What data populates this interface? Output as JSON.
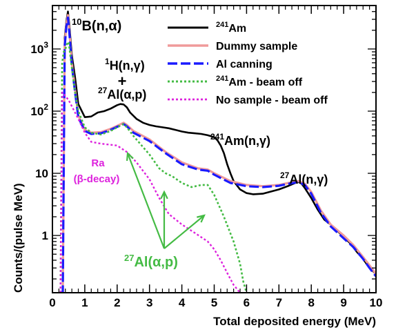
{
  "chart_data": {
    "type": "line",
    "xlabel": "Total deposited energy (MeV)",
    "ylabel": "Counts/(pulse MeV)",
    "xlim": [
      0,
      10
    ],
    "ylim": [
      0.12,
      5000
    ],
    "y_scale": "log",
    "grid": false,
    "legend_placement": "top-right",
    "x_ticks": [
      "0",
      "1",
      "2",
      "3",
      "4",
      "5",
      "6",
      "7",
      "8",
      "9",
      "10"
    ],
    "y_ticks": [
      {
        "value": 1,
        "label": "1"
      },
      {
        "value": 10,
        "label": "10"
      },
      {
        "value": 100,
        "label": "10",
        "exp": "2"
      },
      {
        "value": 1000,
        "label": "10",
        "exp": "3"
      }
    ],
    "series": [
      {
        "name": "Am",
        "name_sup": "241",
        "color": "#000000",
        "dash": "solid",
        "x": [
          0.25,
          0.32,
          0.38,
          0.43,
          0.48,
          0.52,
          0.6,
          0.7,
          0.8,
          1.0,
          1.2,
          1.4,
          1.6,
          1.8,
          2.0,
          2.1,
          2.2,
          2.3,
          2.4,
          2.6,
          2.8,
          3.0,
          3.2,
          3.4,
          3.6,
          3.8,
          4.0,
          4.2,
          4.4,
          4.6,
          4.8,
          5.0,
          5.1,
          5.2,
          5.3,
          5.4,
          5.5,
          5.6,
          5.8,
          6.0,
          6.2,
          6.5,
          7.0,
          7.3,
          7.5,
          7.6,
          7.7,
          7.8,
          8.0,
          8.2,
          8.4,
          8.6,
          8.8,
          9.0,
          9.2,
          9.4,
          9.6,
          9.8,
          10.0
        ],
        "y": [
          0.12,
          0.12,
          1500,
          2800,
          4000,
          2500,
          800,
          350,
          130,
          80,
          82,
          95,
          100,
          110,
          125,
          130,
          128,
          115,
          95,
          75,
          65,
          60,
          57,
          55,
          53,
          50,
          47,
          45,
          44,
          43,
          41,
          38,
          34,
          28,
          21,
          14,
          10,
          7.5,
          5.5,
          4.8,
          4.6,
          4.7,
          5.5,
          6.3,
          7.0,
          7.3,
          6.8,
          5.8,
          4.0,
          2.6,
          1.8,
          1.5,
          1.2,
          0.95,
          0.75,
          0.55,
          0.42,
          0.3,
          0.24
        ]
      },
      {
        "name": "Dummy sample",
        "color": "#f09a9a",
        "dash": "solid",
        "x": [
          0.25,
          0.32,
          0.38,
          0.43,
          0.48,
          0.52,
          0.6,
          0.7,
          0.8,
          1.0,
          1.2,
          1.5,
          1.8,
          2.0,
          2.2,
          2.3,
          2.5,
          3.0,
          3.5,
          4.0,
          4.5,
          4.8,
          5.0,
          5.5,
          6.0,
          6.5,
          7.0,
          7.3,
          7.6,
          7.8,
          8.0,
          8.3,
          8.6,
          9.0,
          9.3,
          9.6,
          9.8,
          10.0
        ],
        "y": [
          0.12,
          0.12,
          1200,
          2500,
          3500,
          2000,
          600,
          220,
          85,
          50,
          45,
          46,
          52,
          58,
          65,
          60,
          48,
          35,
          22,
          15,
          12,
          11.5,
          10,
          7.5,
          6.5,
          6.2,
          6.5,
          7.0,
          7.5,
          6.8,
          5.0,
          2.5,
          1.5,
          1.0,
          0.7,
          0.45,
          0.33,
          0.24
        ]
      },
      {
        "name": "Al canning",
        "color": "#1a1aff",
        "dash": "long-dash",
        "x": [
          0.25,
          0.32,
          0.38,
          0.43,
          0.48,
          0.52,
          0.6,
          0.7,
          0.8,
          1.0,
          1.2,
          1.5,
          1.8,
          2.0,
          2.2,
          2.3,
          2.5,
          3.0,
          3.5,
          4.0,
          4.5,
          4.8,
          5.0,
          5.5,
          6.0,
          6.5,
          7.0,
          7.3,
          7.6,
          7.8,
          8.0,
          8.3,
          8.6,
          9.0,
          9.3,
          9.6,
          9.8,
          10.0
        ],
        "y": [
          0.12,
          0.12,
          1100,
          2300,
          3200,
          1900,
          550,
          200,
          80,
          48,
          43,
          44,
          50,
          56,
          62,
          57,
          45,
          33,
          21,
          14,
          11.5,
          11,
          9.5,
          7,
          6.2,
          6.0,
          6.3,
          6.8,
          7.2,
          6.5,
          4.7,
          2.3,
          1.4,
          0.9,
          0.65,
          0.42,
          0.3,
          0.22
        ]
      },
      {
        "name": "Am - beam off",
        "name_sup": "241",
        "color": "#44bb44",
        "dash": "dotted",
        "x": [
          0.25,
          0.3,
          0.35,
          0.4,
          0.45,
          0.5,
          0.6,
          0.7,
          0.8,
          1.0,
          1.2,
          1.5,
          1.8,
          2.0,
          2.2,
          2.3,
          2.5,
          3.0,
          3.3,
          3.5,
          3.7,
          4.0,
          4.3,
          4.6,
          4.8,
          5.0,
          5.3,
          5.6,
          5.8,
          5.9,
          6.0
        ],
        "y": [
          0.12,
          600,
          900,
          1000,
          1200,
          1300,
          500,
          200,
          100,
          55,
          45,
          42,
          48,
          55,
          62,
          55,
          40,
          20,
          12,
          10,
          9,
          7,
          6,
          6.5,
          6.5,
          4.5,
          2.0,
          0.8,
          0.35,
          0.18,
          0.12
        ]
      },
      {
        "name": "No sample - beam off",
        "color": "#dd22dd",
        "dash": "dotted",
        "x": [
          0.25,
          0.3,
          0.35,
          0.4,
          0.5,
          0.6,
          0.8,
          1.0,
          1.2,
          1.5,
          2.0,
          2.3,
          2.6,
          3.0,
          3.3,
          3.6,
          4.0,
          4.4,
          4.8,
          5.0,
          5.2,
          5.4,
          5.6,
          5.8
        ],
        "y": [
          0.12,
          200,
          190,
          175,
          150,
          120,
          75,
          45,
          32,
          30,
          28,
          22,
          15,
          8,
          4.0,
          2.2,
          1.5,
          1.1,
          0.8,
          0.6,
          0.4,
          0.25,
          0.16,
          0.12
        ]
      }
    ],
    "annotations": {
      "b10": {
        "sup": "10",
        "text": "B(n,α)"
      },
      "h1_sup": "1",
      "h1_text": "H(n,γ)",
      "plus": "+",
      "al27_sup": "27",
      "al27_text": "Al(α,p)",
      "am241_sup": "241",
      "am241_text": "Am(n,γ)",
      "alng_sup": "27",
      "alng_text": "Al(n,γ)",
      "ra_line1": "Ra",
      "ra_line2": "(β-decay)",
      "alap_sup": "27",
      "alap_text": "Al(α,p)"
    }
  }
}
